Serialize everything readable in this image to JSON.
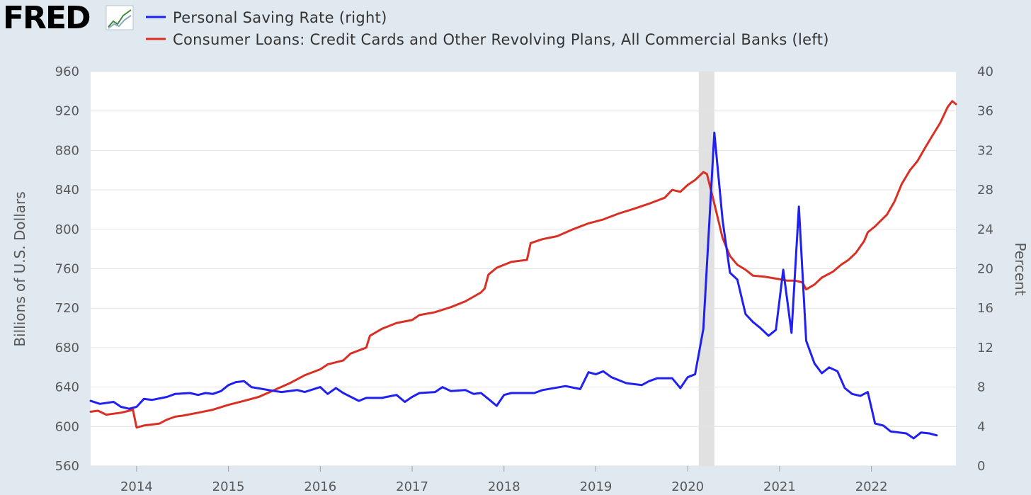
{
  "logo": {
    "text": "FRED",
    "icon": "trend-chart-icon"
  },
  "chart_data": {
    "type": "line",
    "legend": [
      {
        "label": "Personal Saving Rate (right)",
        "color": "#2020f0"
      },
      {
        "label": "Consumer Loans: Credit Cards and Other Revolving Plans, All Commercial Banks (left)",
        "color": "#d93025"
      }
    ],
    "left_axis": {
      "title": "Billions of U.S. Dollars",
      "ylim": [
        560,
        960
      ],
      "ticks": [
        "960",
        "920",
        "880",
        "840",
        "800",
        "760",
        "720",
        "680",
        "640",
        "600",
        "560"
      ]
    },
    "right_axis": {
      "title": "Percent",
      "ylim": [
        0,
        40
      ],
      "ticks": [
        "40",
        "36",
        "32",
        "28",
        "24",
        "20",
        "16",
        "12",
        "8",
        "4",
        "0"
      ]
    },
    "x_axis": {
      "range": [
        2013.5,
        2022.92
      ],
      "ticks": [
        "2014",
        "2015",
        "2016",
        "2017",
        "2018",
        "2019",
        "2020",
        "2021",
        "2022"
      ]
    },
    "recession": {
      "start": 2020.12,
      "end": 2020.29
    },
    "grid": true,
    "series": [
      {
        "name": "Personal Saving Rate",
        "axis": "right",
        "color": "#2020f0",
        "points": [
          [
            2013.5,
            6.6
          ],
          [
            2013.6,
            6.3
          ],
          [
            2013.75,
            6.5
          ],
          [
            2013.83,
            6.0
          ],
          [
            2013.92,
            5.8
          ],
          [
            2014.0,
            6.0
          ],
          [
            2014.08,
            6.8
          ],
          [
            2014.17,
            6.7
          ],
          [
            2014.33,
            7.0
          ],
          [
            2014.42,
            7.3
          ],
          [
            2014.58,
            7.4
          ],
          [
            2014.67,
            7.2
          ],
          [
            2014.75,
            7.4
          ],
          [
            2014.83,
            7.3
          ],
          [
            2014.92,
            7.6
          ],
          [
            2015.0,
            8.2
          ],
          [
            2015.08,
            8.5
          ],
          [
            2015.17,
            8.6
          ],
          [
            2015.25,
            8.0
          ],
          [
            2015.5,
            7.6
          ],
          [
            2015.58,
            7.5
          ],
          [
            2015.75,
            7.7
          ],
          [
            2015.83,
            7.5
          ],
          [
            2016.0,
            8.0
          ],
          [
            2016.08,
            7.3
          ],
          [
            2016.17,
            7.9
          ],
          [
            2016.25,
            7.4
          ],
          [
            2016.42,
            6.6
          ],
          [
            2016.5,
            6.9
          ],
          [
            2016.67,
            6.9
          ],
          [
            2016.83,
            7.2
          ],
          [
            2016.92,
            6.5
          ],
          [
            2017.0,
            7.0
          ],
          [
            2017.08,
            7.4
          ],
          [
            2017.25,
            7.5
          ],
          [
            2017.33,
            8.0
          ],
          [
            2017.42,
            7.6
          ],
          [
            2017.58,
            7.7
          ],
          [
            2017.67,
            7.3
          ],
          [
            2017.75,
            7.4
          ],
          [
            2017.83,
            6.8
          ],
          [
            2017.92,
            6.1
          ],
          [
            2018.0,
            7.2
          ],
          [
            2018.08,
            7.4
          ],
          [
            2018.33,
            7.4
          ],
          [
            2018.42,
            7.7
          ],
          [
            2018.67,
            8.1
          ],
          [
            2018.83,
            7.8
          ],
          [
            2018.92,
            9.5
          ],
          [
            2019.0,
            9.3
          ],
          [
            2019.08,
            9.6
          ],
          [
            2019.17,
            9.0
          ],
          [
            2019.33,
            8.4
          ],
          [
            2019.5,
            8.2
          ],
          [
            2019.58,
            8.6
          ],
          [
            2019.67,
            8.9
          ],
          [
            2019.83,
            8.9
          ],
          [
            2019.92,
            7.9
          ],
          [
            2020.0,
            9.0
          ],
          [
            2020.08,
            9.3
          ],
          [
            2020.17,
            13.9
          ],
          [
            2020.29,
            33.8
          ],
          [
            2020.38,
            24.9
          ],
          [
            2020.46,
            19.6
          ],
          [
            2020.54,
            18.9
          ],
          [
            2020.63,
            15.4
          ],
          [
            2020.71,
            14.6
          ],
          [
            2020.79,
            14.0
          ],
          [
            2020.88,
            13.2
          ],
          [
            2020.96,
            13.8
          ],
          [
            2021.04,
            19.9
          ],
          [
            2021.13,
            13.5
          ],
          [
            2021.21,
            26.3
          ],
          [
            2021.29,
            12.7
          ],
          [
            2021.38,
            10.4
          ],
          [
            2021.46,
            9.4
          ],
          [
            2021.54,
            10.0
          ],
          [
            2021.63,
            9.6
          ],
          [
            2021.71,
            7.9
          ],
          [
            2021.79,
            7.3
          ],
          [
            2021.88,
            7.1
          ],
          [
            2021.96,
            7.5
          ],
          [
            2022.04,
            4.3
          ],
          [
            2022.13,
            4.1
          ],
          [
            2022.21,
            3.5
          ],
          [
            2022.38,
            3.3
          ],
          [
            2022.46,
            2.8
          ],
          [
            2022.54,
            3.4
          ],
          [
            2022.63,
            3.3
          ],
          [
            2022.71,
            3.1
          ]
        ]
      },
      {
        "name": "Consumer Loans: Credit Cards and Other Revolving Plans",
        "axis": "left",
        "color": "#d93025",
        "points": [
          [
            2013.5,
            615
          ],
          [
            2013.58,
            616
          ],
          [
            2013.67,
            612
          ],
          [
            2013.75,
            613
          ],
          [
            2013.83,
            614
          ],
          [
            2013.92,
            616
          ],
          [
            2013.96,
            617
          ],
          [
            2014.0,
            599
          ],
          [
            2014.08,
            601
          ],
          [
            2014.25,
            603
          ],
          [
            2014.33,
            607
          ],
          [
            2014.42,
            610
          ],
          [
            2014.5,
            611
          ],
          [
            2014.67,
            614
          ],
          [
            2014.83,
            617
          ],
          [
            2015.0,
            622
          ],
          [
            2015.17,
            626
          ],
          [
            2015.33,
            630
          ],
          [
            2015.5,
            637
          ],
          [
            2015.67,
            644
          ],
          [
            2015.83,
            652
          ],
          [
            2016.0,
            658
          ],
          [
            2016.08,
            663
          ],
          [
            2016.25,
            667
          ],
          [
            2016.33,
            674
          ],
          [
            2016.5,
            680
          ],
          [
            2016.54,
            692
          ],
          [
            2016.67,
            699
          ],
          [
            2016.83,
            705
          ],
          [
            2017.0,
            708
          ],
          [
            2017.08,
            713
          ],
          [
            2017.25,
            716
          ],
          [
            2017.42,
            721
          ],
          [
            2017.58,
            727
          ],
          [
            2017.75,
            736
          ],
          [
            2017.79,
            740
          ],
          [
            2017.83,
            754
          ],
          [
            2017.92,
            761
          ],
          [
            2018.08,
            767
          ],
          [
            2018.25,
            769
          ],
          [
            2018.29,
            786
          ],
          [
            2018.42,
            790
          ],
          [
            2018.58,
            793
          ],
          [
            2018.75,
            800
          ],
          [
            2018.92,
            806
          ],
          [
            2019.08,
            810
          ],
          [
            2019.25,
            816
          ],
          [
            2019.42,
            821
          ],
          [
            2019.58,
            826
          ],
          [
            2019.75,
            832
          ],
          [
            2019.83,
            840
          ],
          [
            2019.92,
            838
          ],
          [
            2020.0,
            845
          ],
          [
            2020.08,
            850
          ],
          [
            2020.17,
            858
          ],
          [
            2020.21,
            856
          ],
          [
            2020.29,
            826
          ],
          [
            2020.38,
            791
          ],
          [
            2020.46,
            773
          ],
          [
            2020.54,
            764
          ],
          [
            2020.63,
            759
          ],
          [
            2020.71,
            753
          ],
          [
            2020.83,
            752
          ],
          [
            2020.96,
            750
          ],
          [
            2021.08,
            748
          ],
          [
            2021.17,
            748
          ],
          [
            2021.25,
            746
          ],
          [
            2021.29,
            739
          ],
          [
            2021.38,
            744
          ],
          [
            2021.46,
            751
          ],
          [
            2021.58,
            757
          ],
          [
            2021.67,
            764
          ],
          [
            2021.75,
            769
          ],
          [
            2021.83,
            776
          ],
          [
            2021.92,
            788
          ],
          [
            2021.96,
            797
          ],
          [
            2022.04,
            803
          ],
          [
            2022.17,
            815
          ],
          [
            2022.25,
            828
          ],
          [
            2022.33,
            846
          ],
          [
            2022.42,
            860
          ],
          [
            2022.5,
            869
          ],
          [
            2022.58,
            882
          ],
          [
            2022.67,
            896
          ],
          [
            2022.75,
            908
          ],
          [
            2022.83,
            924
          ],
          [
            2022.88,
            930
          ],
          [
            2022.92,
            927
          ]
        ]
      }
    ]
  }
}
